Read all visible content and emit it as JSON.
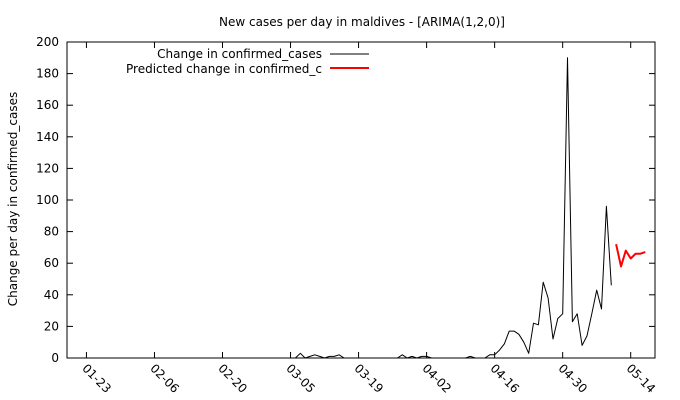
{
  "chart_data": {
    "type": "line",
    "title": "New cases per day in maldives -  [ARIMA(1,2,0)]",
    "xlabel": "",
    "ylabel": "Change per day in confirmed_cases",
    "ylim": [
      0,
      200
    ],
    "y_ticks": [
      0,
      20,
      40,
      60,
      80,
      100,
      120,
      140,
      160,
      180,
      200
    ],
    "x_range": [
      "2020-01-19",
      "2020-05-19"
    ],
    "x_tick_dates": [
      "2020-01-23",
      "2020-02-06",
      "2020-02-20",
      "2020-03-05",
      "2020-03-19",
      "2020-04-02",
      "2020-04-16",
      "2020-04-30",
      "2020-05-14"
    ],
    "x_tick_labels": [
      "01-23",
      "02-06",
      "02-20",
      "03-05",
      "03-19",
      "04-02",
      "04-16",
      "04-30",
      "05-14"
    ],
    "grid": false,
    "legend_position": "top-left",
    "series": [
      {
        "name": "Change in confirmed_cases",
        "color": "#000000",
        "points": [
          [
            "2020-01-22",
            0
          ],
          [
            "2020-02-01",
            0
          ],
          [
            "2020-02-15",
            0
          ],
          [
            "2020-03-01",
            0
          ],
          [
            "2020-03-06",
            0
          ],
          [
            "2020-03-07",
            3
          ],
          [
            "2020-03-08",
            0
          ],
          [
            "2020-03-09",
            1
          ],
          [
            "2020-03-10",
            2
          ],
          [
            "2020-03-11",
            1
          ],
          [
            "2020-03-12",
            0
          ],
          [
            "2020-03-13",
            1
          ],
          [
            "2020-03-14",
            1
          ],
          [
            "2020-03-15",
            2
          ],
          [
            "2020-03-16",
            0
          ],
          [
            "2020-03-17",
            0
          ],
          [
            "2020-03-25",
            0
          ],
          [
            "2020-03-27",
            0
          ],
          [
            "2020-03-28",
            2
          ],
          [
            "2020-03-29",
            0
          ],
          [
            "2020-03-30",
            1
          ],
          [
            "2020-03-31",
            0
          ],
          [
            "2020-04-01",
            1
          ],
          [
            "2020-04-02",
            1
          ],
          [
            "2020-04-03",
            0
          ],
          [
            "2020-04-10",
            0
          ],
          [
            "2020-04-11",
            1
          ],
          [
            "2020-04-12",
            0
          ],
          [
            "2020-04-14",
            0
          ],
          [
            "2020-04-15",
            2
          ],
          [
            "2020-04-16",
            2
          ],
          [
            "2020-04-17",
            5
          ],
          [
            "2020-04-18",
            9
          ],
          [
            "2020-04-19",
            17
          ],
          [
            "2020-04-20",
            17
          ],
          [
            "2020-04-21",
            15
          ],
          [
            "2020-04-22",
            10
          ],
          [
            "2020-04-23",
            3
          ],
          [
            "2020-04-24",
            22
          ],
          [
            "2020-04-25",
            21
          ],
          [
            "2020-04-26",
            48
          ],
          [
            "2020-04-27",
            38
          ],
          [
            "2020-04-28",
            12
          ],
          [
            "2020-04-29",
            25
          ],
          [
            "2020-04-30",
            28
          ],
          [
            "2020-05-01",
            190
          ],
          [
            "2020-05-02",
            23
          ],
          [
            "2020-05-03",
            28
          ],
          [
            "2020-05-04",
            8
          ],
          [
            "2020-05-05",
            14
          ],
          [
            "2020-05-06",
            28
          ],
          [
            "2020-05-07",
            43
          ],
          [
            "2020-05-08",
            31
          ],
          [
            "2020-05-09",
            96
          ],
          [
            "2020-05-10",
            46
          ]
        ]
      },
      {
        "name": "Predicted change in confirmed_c",
        "color": "#ff0000",
        "points": [
          [
            "2020-05-11",
            72
          ],
          [
            "2020-05-12",
            58
          ],
          [
            "2020-05-13",
            68
          ],
          [
            "2020-05-14",
            63
          ],
          [
            "2020-05-15",
            66
          ],
          [
            "2020-05-16",
            66
          ],
          [
            "2020-05-17",
            67
          ]
        ]
      }
    ]
  }
}
